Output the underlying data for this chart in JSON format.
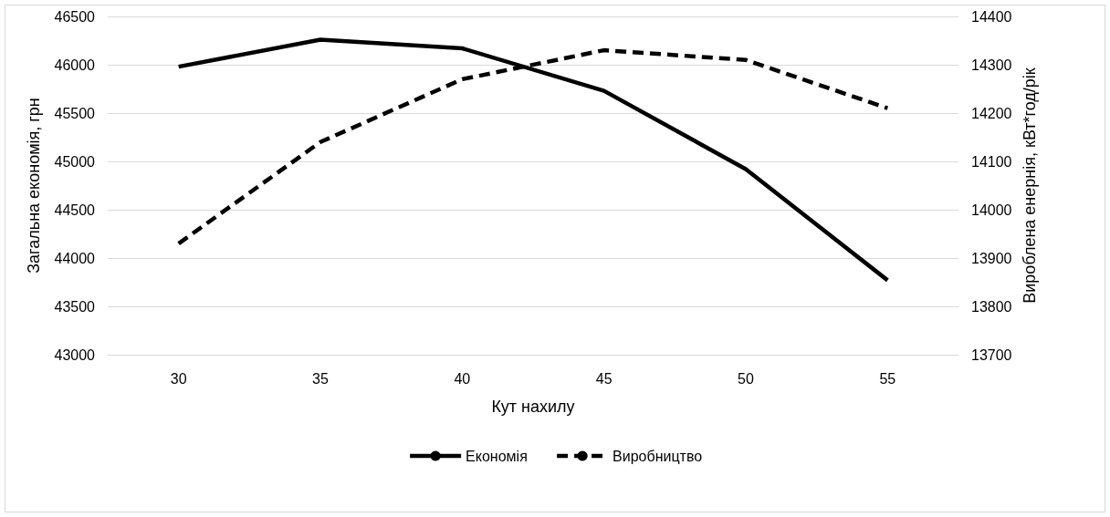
{
  "chart_data": {
    "type": "line",
    "xlabel": "Кут нахилу",
    "ylabel": "Загальна економія, грн",
    "y2label": "Вироблена енернія, кВт*год/рік",
    "categories": [
      "30",
      "35",
      "40",
      "45",
      "50",
      "55"
    ],
    "series": [
      {
        "name": "Економія",
        "color": "#000000",
        "line_style": "solid",
        "values": [
          45980,
          46260,
          46170,
          45730,
          44920,
          43770
        ]
      },
      {
        "name": "Виробництво",
        "color": "#000000",
        "line_style": "dashed",
        "axis": "y2",
        "values": [
          13930,
          14140,
          14270,
          14330,
          14310,
          14210
        ]
      }
    ],
    "ylim": [
      43000,
      46500
    ],
    "yticks": [
      43000,
      43500,
      44000,
      44500,
      45000,
      45500,
      46000,
      46500
    ],
    "y2lim": [
      13700,
      14400
    ],
    "y2ticks": [
      13700,
      13800,
      13900,
      14000,
      14100,
      14200,
      14300,
      14400
    ],
    "grid": "y",
    "legend": "bottom",
    "marker": "none"
  }
}
